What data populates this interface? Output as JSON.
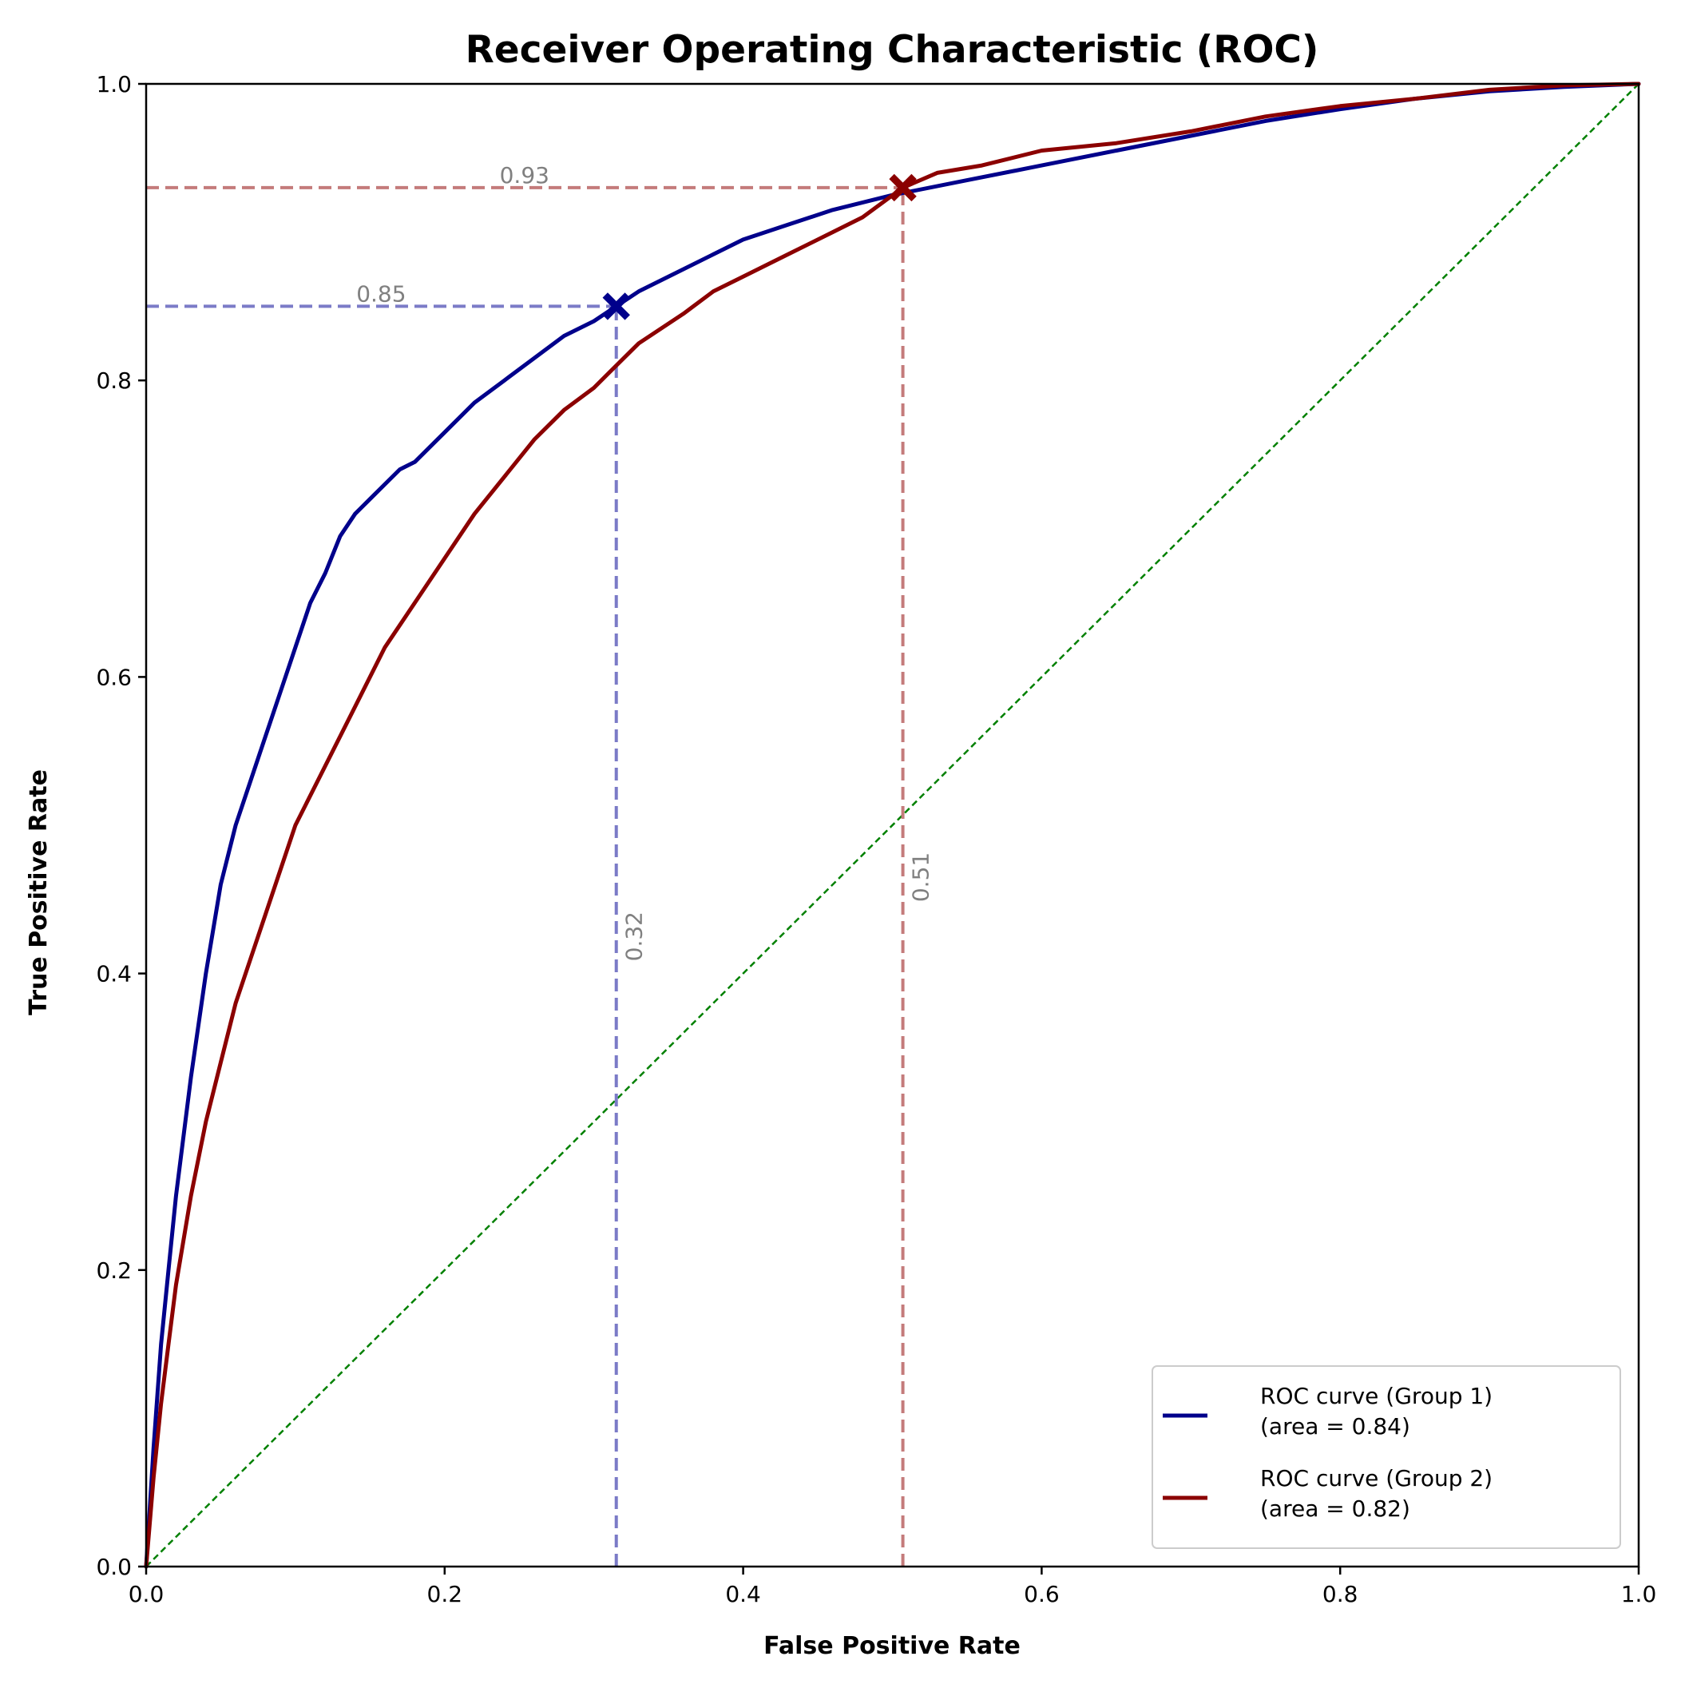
{
  "chart_data": {
    "type": "line",
    "title": "Receiver Operating Characteristic (ROC)",
    "xlabel": "False Positive Rate",
    "ylabel": "True Positive Rate",
    "xlim": [
      0.0,
      1.0
    ],
    "ylim": [
      0.0,
      1.0
    ],
    "xticks": [
      "0.0",
      "0.2",
      "0.4",
      "0.6",
      "0.8",
      "1.0"
    ],
    "yticks": [
      "0.0",
      "0.2",
      "0.4",
      "0.6",
      "0.8",
      "1.0"
    ],
    "grid": false,
    "legend_position": "lower-right",
    "series": [
      {
        "name": "ROC curve (Group 1)",
        "legend_line2": "(area = 0.84)",
        "color": "#00008b",
        "x": [
          0,
          0.005,
          0.01,
          0.015,
          0.02,
          0.03,
          0.04,
          0.05,
          0.06,
          0.07,
          0.08,
          0.09,
          0.1,
          0.11,
          0.12,
          0.13,
          0.14,
          0.15,
          0.16,
          0.17,
          0.18,
          0.2,
          0.22,
          0.24,
          0.26,
          0.28,
          0.3,
          0.315,
          0.33,
          0.35,
          0.38,
          0.4,
          0.43,
          0.46,
          0.5,
          0.55,
          0.6,
          0.65,
          0.7,
          0.75,
          0.8,
          0.85,
          0.9,
          0.95,
          1.0
        ],
        "y": [
          0,
          0.08,
          0.15,
          0.2,
          0.25,
          0.33,
          0.4,
          0.46,
          0.5,
          0.53,
          0.56,
          0.59,
          0.62,
          0.65,
          0.67,
          0.695,
          0.71,
          0.72,
          0.73,
          0.74,
          0.745,
          0.765,
          0.785,
          0.8,
          0.815,
          0.83,
          0.84,
          0.85,
          0.86,
          0.87,
          0.885,
          0.895,
          0.905,
          0.915,
          0.925,
          0.935,
          0.945,
          0.955,
          0.965,
          0.975,
          0.983,
          0.99,
          0.995,
          0.998,
          1.0
        ]
      },
      {
        "name": "ROC curve (Group 2)",
        "legend_line2": "(area = 0.82)",
        "color": "#8b0000",
        "x": [
          0,
          0.005,
          0.01,
          0.015,
          0.02,
          0.03,
          0.04,
          0.05,
          0.06,
          0.07,
          0.08,
          0.09,
          0.1,
          0.12,
          0.14,
          0.16,
          0.18,
          0.2,
          0.22,
          0.24,
          0.26,
          0.28,
          0.3,
          0.315,
          0.33,
          0.36,
          0.38,
          0.4,
          0.43,
          0.46,
          0.48,
          0.507,
          0.53,
          0.56,
          0.6,
          0.65,
          0.7,
          0.75,
          0.8,
          0.85,
          0.9,
          0.95,
          1.0
        ],
        "y": [
          0,
          0.06,
          0.11,
          0.15,
          0.19,
          0.25,
          0.3,
          0.34,
          0.38,
          0.41,
          0.44,
          0.47,
          0.5,
          0.54,
          0.58,
          0.62,
          0.65,
          0.68,
          0.71,
          0.735,
          0.76,
          0.78,
          0.795,
          0.81,
          0.825,
          0.845,
          0.86,
          0.87,
          0.885,
          0.9,
          0.91,
          0.93,
          0.94,
          0.945,
          0.955,
          0.96,
          0.968,
          0.978,
          0.985,
          0.99,
          0.996,
          0.999,
          1.0
        ]
      }
    ],
    "chance_line": {
      "x": [
        0,
        1
      ],
      "y": [
        0,
        1
      ],
      "color": "#008000"
    },
    "operating_points": [
      {
        "fpr": 0.315,
        "tpr": 0.85,
        "color": "#00008b",
        "fpr_label": "0.32",
        "tpr_label": "0.85",
        "guide_color": "#7b7bc7"
      },
      {
        "fpr": 0.507,
        "tpr": 0.93,
        "color": "#8b0000",
        "fpr_label": "0.51",
        "tpr_label": "0.93",
        "guide_color": "#c47b7b"
      }
    ]
  }
}
